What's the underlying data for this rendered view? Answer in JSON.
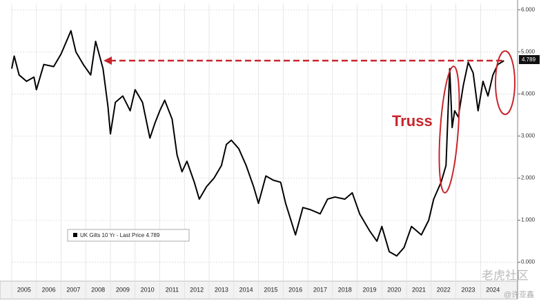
{
  "chart_data": {
    "type": "line",
    "series": [
      {
        "name": "UK Gilts 10 Yr - Last Price 4.789",
        "color": "#000000",
        "x": [
          2005.0,
          2005.1,
          2005.3,
          2005.6,
          2005.9,
          2006.0,
          2006.3,
          2006.7,
          2007.0,
          2007.4,
          2007.6,
          2007.9,
          2008.2,
          2008.4,
          2008.7,
          2008.9,
          2009.0,
          2009.2,
          2009.5,
          2009.8,
          2010.0,
          2010.3,
          2010.6,
          2010.8,
          2011.0,
          2011.2,
          2011.5,
          2011.7,
          2011.9,
          2012.1,
          2012.4,
          2012.6,
          2012.9,
          2013.2,
          2013.5,
          2013.7,
          2013.9,
          2014.2,
          2014.5,
          2014.8,
          2015.0,
          2015.3,
          2015.6,
          2015.9,
          2016.1,
          2016.5,
          2016.8,
          2017.1,
          2017.5,
          2017.8,
          2018.1,
          2018.5,
          2018.8,
          2019.1,
          2019.5,
          2019.8,
          2020.0,
          2020.3,
          2020.6,
          2020.9,
          2021.2,
          2021.6,
          2021.9,
          2022.1,
          2022.4,
          2022.6,
          2022.75,
          2022.85,
          2022.95,
          2023.1,
          2023.3,
          2023.5,
          2023.7,
          2023.9,
          2024.1,
          2024.3,
          2024.5,
          2024.7,
          2024.95
        ],
        "values": [
          4.6,
          4.9,
          4.45,
          4.3,
          4.4,
          4.1,
          4.7,
          4.65,
          4.95,
          5.5,
          5.0,
          4.7,
          4.45,
          5.25,
          4.6,
          3.7,
          3.05,
          3.8,
          3.95,
          3.6,
          4.1,
          3.8,
          2.95,
          3.3,
          3.6,
          3.85,
          3.4,
          2.55,
          2.15,
          2.4,
          1.9,
          1.5,
          1.8,
          2.0,
          2.3,
          2.8,
          2.9,
          2.7,
          2.3,
          1.8,
          1.4,
          2.05,
          1.95,
          1.9,
          1.4,
          0.65,
          1.3,
          1.25,
          1.15,
          1.5,
          1.55,
          1.5,
          1.65,
          1.15,
          0.75,
          0.5,
          0.85,
          0.25,
          0.15,
          0.35,
          0.85,
          0.65,
          1.0,
          1.5,
          1.9,
          2.3,
          4.6,
          3.2,
          3.6,
          3.45,
          4.2,
          4.75,
          4.5,
          3.6,
          4.3,
          3.95,
          4.45,
          4.7,
          4.789
        ]
      }
    ],
    "xlim": [
      2005,
      2025.5
    ],
    "xticks": [
      2005,
      2006,
      2007,
      2008,
      2009,
      2010,
      2011,
      2012,
      2013,
      2014,
      2015,
      2016,
      2017,
      2018,
      2019,
      2020,
      2021,
      2022,
      2023,
      2024
    ],
    "ylim": [
      -0.4,
      6.15
    ],
    "yticks": [
      {
        "value": 0,
        "label": "0.000"
      },
      {
        "value": 1,
        "label": "1.000"
      },
      {
        "value": 2,
        "label": "2.000"
      },
      {
        "value": 3,
        "label": "3.000"
      },
      {
        "value": 4,
        "label": "4.000"
      },
      {
        "value": 5,
        "label": "5.000"
      },
      {
        "value": 6,
        "label": "6.000"
      }
    ],
    "grid": true,
    "annotations": [
      "Truss",
      "4.789"
    ],
    "watermark": [
      "老虎社区",
      "@许亚鑫"
    ]
  }
}
